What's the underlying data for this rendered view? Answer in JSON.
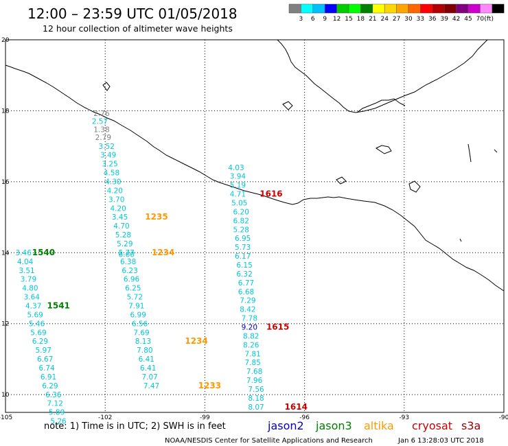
{
  "header": {
    "title": "12:00 – 23:59 UTC 01/05/2018",
    "subtitle": "12 hour collection of altimeter wave heights"
  },
  "legend": {
    "unit": "(ft)",
    "colors": [
      "#808080",
      "#00ffff",
      "#00bfff",
      "#0000ff",
      "#00cc00",
      "#00ff00",
      "#008000",
      "#ffff00",
      "#ffd700",
      "#ffa500",
      "#ff6600",
      "#ff0000",
      "#b20000",
      "#800000",
      "#800080",
      "#cc00cc",
      "#ff88ff",
      "#000000"
    ],
    "labels": [
      "3",
      "6",
      "9",
      "12",
      "15",
      "18",
      "21",
      "24",
      "27",
      "30",
      "33",
      "36",
      "39",
      "42",
      "45",
      "70"
    ]
  },
  "axes": {
    "lon_labels": [
      "-105",
      "-102",
      "-99",
      "-96",
      "-93",
      "-90"
    ],
    "lat_labels": [
      "20",
      "18",
      "16",
      "14",
      "12",
      "10"
    ]
  },
  "colors": {
    "gray": "#808080",
    "cyan": "#00c8d8",
    "blue": "#0000cc",
    "green": "#008000",
    "orange": "#ff9900",
    "red": "#cc0000"
  },
  "measurements": [
    {
      "v": "2.76",
      "lon": -102.35,
      "lat": 17.85,
      "c": "gray"
    },
    {
      "v": "2.57",
      "lon": -102.4,
      "lat": 17.63,
      "c": "cyan"
    },
    {
      "v": "1.38",
      "lon": -102.35,
      "lat": 17.4,
      "c": "gray"
    },
    {
      "v": "2.79",
      "lon": -102.3,
      "lat": 17.18,
      "c": "gray"
    },
    {
      "v": "3.52",
      "lon": -102.2,
      "lat": 16.93,
      "c": "cyan"
    },
    {
      "v": "3.49",
      "lon": -102.15,
      "lat": 16.68,
      "c": "cyan"
    },
    {
      "v": "3.25",
      "lon": -102.1,
      "lat": 16.43,
      "c": "cyan"
    },
    {
      "v": "4.58",
      "lon": -102.05,
      "lat": 16.18,
      "c": "cyan"
    },
    {
      "v": "4.30",
      "lon": -102.0,
      "lat": 15.93,
      "c": "cyan"
    },
    {
      "v": "4.20",
      "lon": -101.95,
      "lat": 15.68,
      "c": "cyan"
    },
    {
      "v": "3.70",
      "lon": -101.9,
      "lat": 15.43,
      "c": "cyan"
    },
    {
      "v": "4.20",
      "lon": -101.85,
      "lat": 15.18,
      "c": "cyan"
    },
    {
      "v": "3.45",
      "lon": -101.8,
      "lat": 14.93,
      "c": "cyan"
    },
    {
      "v": "4.70",
      "lon": -101.75,
      "lat": 14.68,
      "c": "cyan"
    },
    {
      "v": "5.28",
      "lon": -101.7,
      "lat": 14.43,
      "c": "cyan"
    },
    {
      "v": "5.29",
      "lon": -101.65,
      "lat": 14.18,
      "c": "cyan"
    },
    {
      "v": "5.77",
      "lon": -101.6,
      "lat": 13.93,
      "c": "cyan"
    },
    {
      "v": "6.60",
      "lon": -101.6,
      "lat": 13.88,
      "c": "cyan"
    },
    {
      "v": "6.38",
      "lon": -101.55,
      "lat": 13.68,
      "c": "cyan"
    },
    {
      "v": "6.23",
      "lon": -101.5,
      "lat": 13.43,
      "c": "cyan"
    },
    {
      "v": "6.96",
      "lon": -101.45,
      "lat": 13.18,
      "c": "cyan"
    },
    {
      "v": "6.25",
      "lon": -101.4,
      "lat": 12.93,
      "c": "cyan"
    },
    {
      "v": "5.72",
      "lon": -101.35,
      "lat": 12.68,
      "c": "cyan"
    },
    {
      "v": "7.91",
      "lon": -101.3,
      "lat": 12.43,
      "c": "cyan"
    },
    {
      "v": "6.99",
      "lon": -101.25,
      "lat": 12.18,
      "c": "cyan"
    },
    {
      "v": "6.56",
      "lon": -101.2,
      "lat": 11.93,
      "c": "cyan"
    },
    {
      "v": "7.69",
      "lon": -101.15,
      "lat": 11.68,
      "c": "cyan"
    },
    {
      "v": "8.13",
      "lon": -101.1,
      "lat": 11.43,
      "c": "cyan"
    },
    {
      "v": "7.80",
      "lon": -101.05,
      "lat": 11.18,
      "c": "cyan"
    },
    {
      "v": "6.41",
      "lon": -101.0,
      "lat": 10.93,
      "c": "cyan"
    },
    {
      "v": "6.41",
      "lon": -100.95,
      "lat": 10.68,
      "c": "cyan"
    },
    {
      "v": "7.07",
      "lon": -100.9,
      "lat": 10.43,
      "c": "cyan"
    },
    {
      "v": "7.47",
      "lon": -100.85,
      "lat": 10.18,
      "c": "cyan"
    },
    {
      "v": "4.03",
      "lon": -98.3,
      "lat": 16.33,
      "c": "cyan"
    },
    {
      "v": "3.94",
      "lon": -98.25,
      "lat": 16.08,
      "c": "cyan"
    },
    {
      "v": "5.19",
      "lon": -98.25,
      "lat": 15.83,
      "c": "cyan"
    },
    {
      "v": "4.71",
      "lon": -98.25,
      "lat": 15.58,
      "c": "cyan"
    },
    {
      "v": "5.05",
      "lon": -98.2,
      "lat": 15.33,
      "c": "cyan"
    },
    {
      "v": "6.20",
      "lon": -98.15,
      "lat": 15.08,
      "c": "cyan"
    },
    {
      "v": "6.82",
      "lon": -98.15,
      "lat": 14.83,
      "c": "cyan"
    },
    {
      "v": "5.28",
      "lon": -98.15,
      "lat": 14.58,
      "c": "cyan"
    },
    {
      "v": "6.95",
      "lon": -98.1,
      "lat": 14.33,
      "c": "cyan"
    },
    {
      "v": "5.73",
      "lon": -98.1,
      "lat": 14.08,
      "c": "cyan"
    },
    {
      "v": "6.17",
      "lon": -98.1,
      "lat": 13.83,
      "c": "cyan"
    },
    {
      "v": "6.15",
      "lon": -98.05,
      "lat": 13.58,
      "c": "cyan"
    },
    {
      "v": "6.32",
      "lon": -98.05,
      "lat": 13.33,
      "c": "cyan"
    },
    {
      "v": "6.77",
      "lon": -98.0,
      "lat": 13.08,
      "c": "cyan"
    },
    {
      "v": "6.68",
      "lon": -98.0,
      "lat": 12.83,
      "c": "cyan"
    },
    {
      "v": "7.29",
      "lon": -97.95,
      "lat": 12.58,
      "c": "cyan"
    },
    {
      "v": "8.42",
      "lon": -97.95,
      "lat": 12.33,
      "c": "cyan"
    },
    {
      "v": "7.78",
      "lon": -97.9,
      "lat": 12.08,
      "c": "cyan"
    },
    {
      "v": "9.20",
      "lon": -97.9,
      "lat": 11.83,
      "c": "blue"
    },
    {
      "v": "8.82",
      "lon": -97.85,
      "lat": 11.58,
      "c": "cyan"
    },
    {
      "v": "8.26",
      "lon": -97.85,
      "lat": 11.33,
      "c": "cyan"
    },
    {
      "v": "7.81",
      "lon": -97.8,
      "lat": 11.08,
      "c": "cyan"
    },
    {
      "v": "7.85",
      "lon": -97.8,
      "lat": 10.83,
      "c": "cyan"
    },
    {
      "v": "7.68",
      "lon": -97.75,
      "lat": 10.58,
      "c": "cyan"
    },
    {
      "v": "7.96",
      "lon": -97.75,
      "lat": 10.33,
      "c": "cyan"
    },
    {
      "v": "7.56",
      "lon": -97.7,
      "lat": 10.08,
      "c": "cyan"
    },
    {
      "v": "8.18",
      "lon": -97.7,
      "lat": 9.83,
      "c": "cyan"
    },
    {
      "v": "8.07",
      "lon": -97.7,
      "lat": 9.58,
      "c": "cyan"
    },
    {
      "v": "3.46",
      "lon": -104.7,
      "lat": 13.93,
      "c": "cyan"
    },
    {
      "v": "4.04",
      "lon": -104.65,
      "lat": 13.68,
      "c": "cyan"
    },
    {
      "v": "3.51",
      "lon": -104.6,
      "lat": 13.43,
      "c": "cyan"
    },
    {
      "v": "3.79",
      "lon": -104.55,
      "lat": 13.18,
      "c": "cyan"
    },
    {
      "v": "4.80",
      "lon": -104.5,
      "lat": 12.93,
      "c": "cyan"
    },
    {
      "v": "3.64",
      "lon": -104.45,
      "lat": 12.68,
      "c": "cyan"
    },
    {
      "v": "4.37",
      "lon": -104.4,
      "lat": 12.43,
      "c": "cyan"
    },
    {
      "v": "5.69",
      "lon": -104.35,
      "lat": 12.18,
      "c": "cyan"
    },
    {
      "v": "5.46",
      "lon": -104.3,
      "lat": 11.93,
      "c": "cyan"
    },
    {
      "v": "5.69",
      "lon": -104.25,
      "lat": 11.68,
      "c": "cyan"
    },
    {
      "v": "6.29",
      "lon": -104.2,
      "lat": 11.43,
      "c": "cyan"
    },
    {
      "v": "5.97",
      "lon": -104.1,
      "lat": 11.18,
      "c": "cyan"
    },
    {
      "v": "6.67",
      "lon": -104.05,
      "lat": 10.93,
      "c": "cyan"
    },
    {
      "v": "6.74",
      "lon": -104.0,
      "lat": 10.68,
      "c": "cyan"
    },
    {
      "v": "6.91",
      "lon": -103.95,
      "lat": 10.43,
      "c": "cyan"
    },
    {
      "v": "6.29",
      "lon": -103.9,
      "lat": 10.18,
      "c": "cyan"
    },
    {
      "v": "6.36",
      "lon": -103.8,
      "lat": 9.93,
      "c": "cyan"
    },
    {
      "v": "7.12",
      "lon": -103.75,
      "lat": 9.68,
      "c": "cyan"
    },
    {
      "v": "5.89",
      "lon": -103.7,
      "lat": 9.43,
      "c": "cyan"
    },
    {
      "v": "5.26",
      "lon": -103.65,
      "lat": 9.18,
      "c": "cyan"
    }
  ],
  "pass_times": [
    {
      "v": "1540",
      "lon": -104.2,
      "lat": 13.93,
      "c": "green"
    },
    {
      "v": "1541",
      "lon": -103.75,
      "lat": 12.43,
      "c": "green"
    },
    {
      "v": "1235",
      "lon": -100.8,
      "lat": 14.93,
      "c": "orange"
    },
    {
      "v": "1234",
      "lon": -100.6,
      "lat": 13.93,
      "c": "orange"
    },
    {
      "v": "1234",
      "lon": -99.6,
      "lat": 11.43,
      "c": "orange"
    },
    {
      "v": "1233",
      "lon": -99.2,
      "lat": 10.18,
      "c": "orange"
    },
    {
      "v": "1616",
      "lon": -97.35,
      "lat": 15.58,
      "c": "red"
    },
    {
      "v": "1615",
      "lon": -97.15,
      "lat": 11.83,
      "c": "red"
    },
    {
      "v": "1614",
      "lon": -96.6,
      "lat": 9.58,
      "c": "red"
    }
  ],
  "footer": {
    "note": "note:  1) Time is in UTC;  2) SWH is in feet",
    "satellites": [
      {
        "name": "jason2",
        "color": "#0000cc"
      },
      {
        "name": "jason3",
        "color": "#008000"
      },
      {
        "name": "altika",
        "color": "#ff9900"
      },
      {
        "name": "cryosat",
        "color": "#cc0000"
      },
      {
        "name": "s3a",
        "color": "#990000"
      }
    ],
    "credit": "NOAA/NESDIS Center for Satellite Applications and Research",
    "timestamp": "Jan  6 13:28:03 UTC 2018"
  }
}
